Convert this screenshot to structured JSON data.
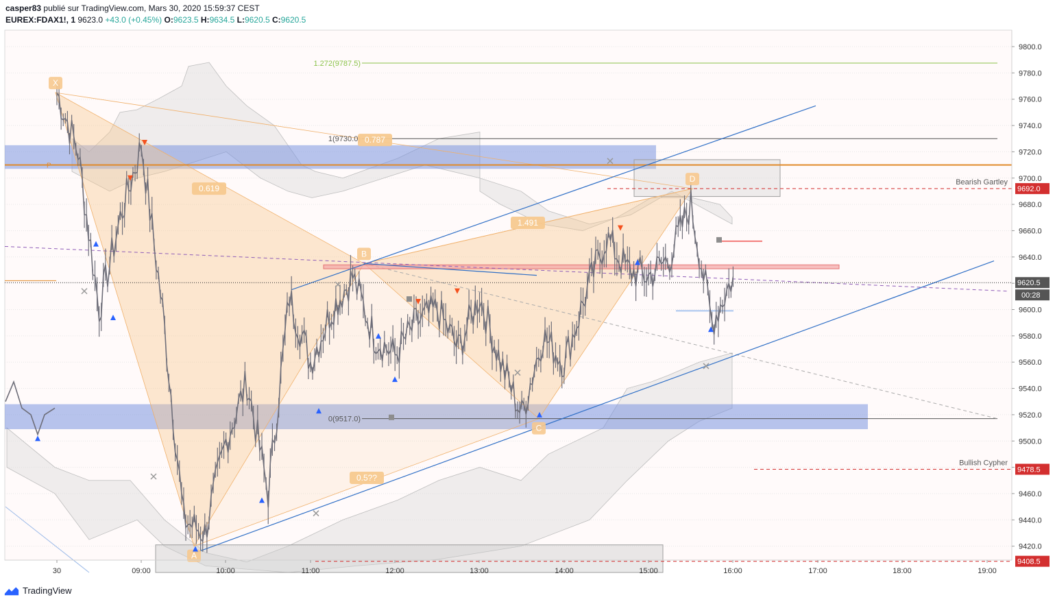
{
  "header": {
    "author": "casper83",
    "published": "publié sur TradingView.com, Mars 30, 2020 15:59:37 CEST",
    "symbol": "EUREX:FDAX1!, 1",
    "last": "9623.0",
    "change": "+43.0 (+0.45%)",
    "o_label": "O:",
    "o_value": "9623.5",
    "h_label": "H:",
    "h_value": "9634.5",
    "l_label": "L:",
    "l_value": "9620.5",
    "c_label": "C:",
    "c_value": "9620.5"
  },
  "footer": {
    "brand": "TradingView"
  },
  "colors": {
    "pattern_fill": "#f7c98f",
    "zone_blue": "#7b96e0",
    "trendline": "#2f6fc6",
    "candle": "#6d6d78",
    "fib_green": "#8bc34a",
    "orange_line": "#e08a2a",
    "red_level": "#d32f2f",
    "ichimoku_grey": "#dcdcdc"
  },
  "chart_data": {
    "type": "line",
    "ylim": [
      9400,
      9810
    ],
    "y_ticks": [
      "9800.0",
      "9780.0",
      "9760.0",
      "9740.0",
      "9720.0",
      "9700.0",
      "9680.0",
      "9660.0",
      "9640.0",
      "9620.0",
      "9600.0",
      "9580.0",
      "9560.0",
      "9540.0",
      "9520.0",
      "9500.0",
      "9480.0",
      "9460.0",
      "9440.0",
      "9420.0"
    ],
    "x_ticks": [
      "30",
      "09:00",
      "10:00",
      "11:00",
      "12:00",
      "13:00",
      "14:00",
      "15:00",
      "16:00",
      "17:00",
      "18:00",
      "19:00"
    ],
    "series": [
      {
        "x": [
          "08:00",
          "08:15",
          "08:30",
          "08:45",
          "09:00",
          "09:15",
          "09:30",
          "09:45",
          "10:00",
          "10:15",
          "10:30",
          "10:45",
          "11:00",
          "11:15",
          "11:30",
          "11:45",
          "12:00",
          "12:15",
          "12:30",
          "12:45",
          "13:00",
          "13:15",
          "13:30",
          "13:45",
          "14:00",
          "14:15",
          "14:30",
          "14:45",
          "15:00",
          "15:15",
          "15:30",
          "15:45",
          "16:00"
        ],
        "values": [
          9765,
          9720,
          9600,
          9670,
          9725,
          9600,
          9440,
          9430,
          9500,
          9545,
          9460,
          9610,
          9560,
          9600,
          9625,
          9580,
          9565,
          9590,
          9600,
          9570,
          9610,
          9560,
          9520,
          9580,
          9560,
          9610,
          9655,
          9630,
          9625,
          9640,
          9680,
          9590,
          9625
        ]
      }
    ],
    "price_labels": [
      {
        "value": 9692.0,
        "text": "9692.0"
      },
      {
        "value": 9620.5,
        "text": "9620.5"
      },
      {
        "value": 9478.5,
        "text": "9478.5"
      },
      {
        "value": 9408.5,
        "text": "9408.5"
      }
    ],
    "countdown": "00:28",
    "annotations": [
      {
        "text": "1.272(9787.5)"
      },
      {
        "text": "1(9730.0)"
      },
      {
        "text": "0(9517.0)"
      },
      {
        "text": "0.787"
      },
      {
        "text": "0.619"
      },
      {
        "text": "1.491"
      },
      {
        "text": "0.5??"
      },
      {
        "text": "Bearish Gartley"
      },
      {
        "text": "Bullish Cypher"
      }
    ],
    "pattern_points": [
      {
        "label": "X",
        "value": 9765
      },
      {
        "label": "A",
        "value": 9420
      },
      {
        "label": "B",
        "value": 9635
      },
      {
        "label": "C",
        "value": 9517
      },
      {
        "label": "D",
        "value": 9692
      }
    ],
    "grid": true
  }
}
